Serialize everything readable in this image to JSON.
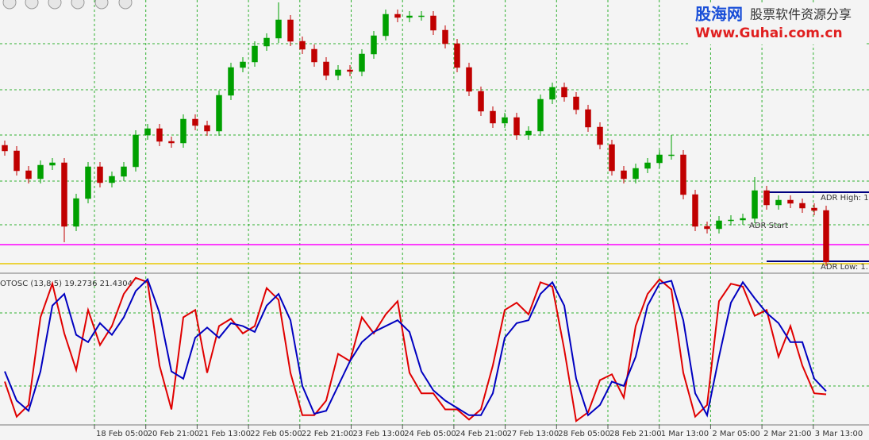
{
  "watermark": {
    "brand": "股海网",
    "tagline": "股票软件资源分享",
    "url": "Www.Guhai.com.cn"
  },
  "chart_data": [
    {
      "type": "candlestick",
      "open": [
        160,
        153,
        128,
        118,
        135,
        138,
        58,
        93,
        133,
        113,
        121,
        133,
        173,
        181,
        165,
        163,
        193,
        185,
        178,
        223,
        258,
        265,
        285,
        295,
        318,
        291,
        281,
        265,
        248,
        255,
        253,
        275,
        298,
        325,
        321,
        323,
        323,
        305,
        288,
        258,
        228,
        203,
        188,
        195,
        173,
        178,
        218,
        233,
        221,
        205,
        183,
        161,
        128,
        118,
        131,
        138,
        148,
        148,
        98,
        58,
        55,
        65,
        66,
        68,
        103,
        85,
        91,
        87,
        81,
        78
      ],
      "high": [
        166,
        159,
        134,
        141,
        144,
        144,
        99,
        139,
        139,
        127,
        139,
        179,
        187,
        187,
        171,
        199,
        199,
        191,
        229,
        264,
        271,
        291,
        301,
        340,
        324,
        297,
        287,
        271,
        261,
        261,
        281,
        304,
        331,
        331,
        329,
        329,
        329,
        311,
        294,
        264,
        234,
        209,
        201,
        201,
        184,
        224,
        239,
        239,
        227,
        211,
        189,
        167,
        134,
        137,
        144,
        154,
        173,
        154,
        104,
        64,
        71,
        72,
        74,
        120,
        109,
        97,
        97,
        93,
        87,
        84
      ],
      "low": [
        147,
        122,
        112,
        112,
        129,
        38,
        52,
        87,
        107,
        107,
        115,
        127,
        167,
        159,
        157,
        157,
        179,
        172,
        172,
        217,
        252,
        259,
        279,
        289,
        285,
        275,
        259,
        242,
        242,
        247,
        247,
        269,
        292,
        315,
        315,
        317,
        299,
        282,
        252,
        222,
        197,
        182,
        182,
        167,
        167,
        172,
        212,
        215,
        199,
        177,
        155,
        122,
        112,
        112,
        125,
        132,
        142,
        92,
        52,
        49,
        49,
        59,
        60,
        62,
        79,
        79,
        81,
        75,
        72,
        8
      ],
      "close": [
        153,
        128,
        118,
        135,
        138,
        58,
        93,
        133,
        113,
        121,
        133,
        173,
        181,
        165,
        163,
        193,
        185,
        178,
        223,
        258,
        265,
        285,
        295,
        318,
        291,
        281,
        265,
        248,
        255,
        253,
        275,
        298,
        325,
        321,
        323,
        323,
        305,
        288,
        258,
        228,
        203,
        188,
        195,
        173,
        178,
        218,
        233,
        221,
        205,
        183,
        161,
        128,
        118,
        131,
        138,
        148,
        148,
        98,
        58,
        55,
        65,
        66,
        68,
        103,
        85,
        91,
        87,
        81,
        78,
        13
      ],
      "up_color": "#00a000",
      "down_color": "#c00000",
      "ylim": [
        0,
        343
      ],
      "yticks": [
        60,
        115,
        173,
        230,
        288
      ],
      "grid": true,
      "hlines": [
        {
          "value": 35,
          "color": "#ff00ff"
        },
        {
          "value": 11,
          "color": "#e8c800"
        }
      ],
      "adr": [
        {
          "label": "ADR High: 1.",
          "value": 101
        },
        {
          "label": "ADR Low: 1.",
          "value": 14
        }
      ],
      "annotation": "ADR Start"
    },
    {
      "type": "line",
      "title": "OTOSC (13,8,5) 19.2736 21.4304",
      "series": [
        {
          "color": "#e00000",
          "values": [
            28,
            4,
            12,
            72,
            95,
            61,
            36,
            77,
            53,
            66,
            88,
            99,
            96,
            39,
            9,
            72,
            77,
            34,
            66,
            71,
            61,
            66,
            92,
            84,
            34,
            5,
            5,
            15,
            47,
            42,
            72,
            61,
            74,
            83,
            34,
            20,
            20,
            9,
            9,
            2,
            9,
            39,
            77,
            82,
            74,
            96,
            93,
            50,
            1,
            7,
            29,
            33,
            17,
            66,
            88,
            98,
            91,
            34,
            4,
            12,
            83,
            95,
            93,
            73,
            77,
            45,
            66,
            39,
            20,
            19.2736
          ]
        },
        {
          "color": "#0000c0",
          "values": [
            35,
            15,
            8,
            35,
            80,
            88,
            60,
            55,
            68,
            60,
            72,
            90,
            98,
            75,
            35,
            30,
            58,
            65,
            58,
            68,
            66,
            62,
            80,
            88,
            70,
            25,
            6,
            8,
            25,
            42,
            55,
            62,
            66,
            70,
            62,
            35,
            22,
            15,
            10,
            5,
            5,
            20,
            58,
            68,
            70,
            88,
            96,
            80,
            30,
            5,
            12,
            28,
            25,
            45,
            80,
            95,
            97,
            70,
            20,
            5,
            45,
            82,
            96,
            85,
            75,
            68,
            55,
            55,
            30,
            21.4304
          ]
        }
      ],
      "ylim": [
        0,
        100
      ],
      "yticks": [
        25,
        75
      ],
      "grid": true,
      "time_labels": [
        "18 Feb 05:00",
        "20 Feb 21:00",
        "21 Feb 13:00",
        "22 Feb 05:00",
        "22 Feb 21:00",
        "23 Feb 13:00",
        "24 Feb 05:00",
        "24 Feb 21:00",
        "27 Feb 13:00",
        "28 Feb 05:00",
        "28 Feb 21:00",
        "1 Mar 13:00",
        "2 Mar 05:00",
        "2 Mar 21:00",
        "3 Mar 13:00"
      ]
    }
  ]
}
